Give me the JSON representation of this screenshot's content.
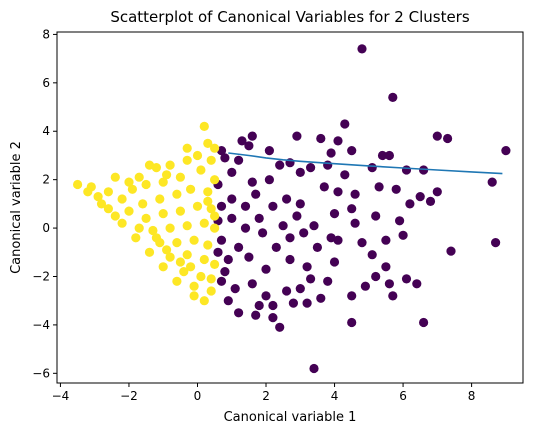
{
  "chart_data": {
    "type": "scatter",
    "title": "Scatterplot of Canonical Variables for 2 Clusters",
    "xlabel": "Canonical variable 1",
    "ylabel": "Canonical variable 2",
    "xlim": [
      -4.1,
      9.5
    ],
    "ylim": [
      -6.4,
      8.1
    ],
    "xticks": [
      -4,
      -2,
      0,
      2,
      4,
      6,
      8
    ],
    "yticks": [
      -6,
      -4,
      -2,
      0,
      2,
      4,
      6,
      8
    ],
    "grid": false,
    "legend": "none",
    "colors": {
      "cluster_0": "#440154",
      "cluster_1": "#fde725",
      "line": "#1f77b4",
      "axes": "#000000"
    },
    "clusters": [
      {
        "id": 0,
        "color": "#440154",
        "points": [
          [
            4.8,
            7.4
          ],
          [
            5.7,
            5.4
          ],
          [
            3.4,
            -5.8
          ],
          [
            8.7,
            -0.6
          ],
          [
            9.0,
            3.2
          ],
          [
            8.6,
            1.9
          ],
          [
            7.4,
            -0.95
          ],
          [
            6.6,
            -3.9
          ],
          [
            7.3,
            3.7
          ],
          [
            7.0,
            3.8
          ],
          [
            6.1,
            2.4
          ],
          [
            6.6,
            2.4
          ],
          [
            4.3,
            4.3
          ],
          [
            4.1,
            3.6
          ],
          [
            4.5,
            3.2
          ],
          [
            3.9,
            3.1
          ],
          [
            2.9,
            3.8
          ],
          [
            3.6,
            3.7
          ],
          [
            5.4,
            3.0
          ],
          [
            5.6,
            3.0
          ],
          [
            6.5,
            1.3
          ],
          [
            6.2,
            1.0
          ],
          [
            6.8,
            1.1
          ],
          [
            7.0,
            1.5
          ],
          [
            5.1,
            2.5
          ],
          [
            6.0,
            -0.3
          ],
          [
            5.9,
            0.3
          ],
          [
            5.5,
            -0.5
          ],
          [
            5.1,
            -1.1
          ],
          [
            5.5,
            -1.6
          ],
          [
            6.1,
            -2.1
          ],
          [
            6.4,
            -2.3
          ],
          [
            5.6,
            -2.3
          ],
          [
            5.7,
            -2.8
          ],
          [
            4.9,
            -2.4
          ],
          [
            5.2,
            -2.0
          ],
          [
            4.0,
            -1.4
          ],
          [
            4.5,
            -2.8
          ],
          [
            3.6,
            -2.9
          ],
          [
            4.5,
            -3.9
          ],
          [
            2.4,
            -4.1
          ],
          [
            2.2,
            -3.7
          ],
          [
            3.2,
            -3.1
          ],
          [
            2.8,
            -3.1
          ],
          [
            1.7,
            -3.6
          ],
          [
            1.2,
            -3.5
          ],
          [
            1.3,
            3.6
          ],
          [
            1.6,
            3.8
          ],
          [
            1.5,
            3.4
          ],
          [
            2.1,
            3.2
          ],
          [
            2.7,
            2.7
          ],
          [
            3.0,
            2.3
          ],
          [
            3.3,
            2.5
          ],
          [
            3.8,
            2.6
          ],
          [
            4.3,
            2.2
          ],
          [
            4.6,
            1.4
          ],
          [
            4.1,
            1.5
          ],
          [
            3.7,
            1.7
          ],
          [
            4.5,
            0.8
          ],
          [
            4.6,
            0.2
          ],
          [
            4.8,
            -0.6
          ],
          [
            3.9,
            -0.4
          ],
          [
            3.5,
            -0.8
          ],
          [
            4.1,
            -0.5
          ],
          [
            3.2,
            -1.6
          ],
          [
            3.3,
            -2.1
          ],
          [
            3.8,
            -2.2
          ],
          [
            2.6,
            -2.6
          ],
          [
            2.0,
            -2.8
          ],
          [
            0.9,
            -3.0
          ],
          [
            0.8,
            2.9
          ],
          [
            0.7,
            3.2
          ],
          [
            1.0,
            2.3
          ],
          [
            1.2,
            2.8
          ],
          [
            1.6,
            1.9
          ],
          [
            2.1,
            2.0
          ],
          [
            2.6,
            1.2
          ],
          [
            2.2,
            0.9
          ],
          [
            2.9,
            0.5
          ],
          [
            3.0,
            1.0
          ],
          [
            2.7,
            -0.4
          ],
          [
            2.3,
            -0.8
          ],
          [
            2.7,
            -1.3
          ],
          [
            2.0,
            -1.7
          ],
          [
            1.6,
            -2.3
          ],
          [
            1.1,
            -2.5
          ],
          [
            0.7,
            -2.2
          ],
          [
            0.6,
            1.8
          ],
          [
            0.7,
            0.9
          ],
          [
            1.0,
            1.2
          ],
          [
            1.4,
            0.9
          ],
          [
            1.8,
            0.4
          ],
          [
            1.4,
            0.0
          ],
          [
            1.9,
            -0.2
          ],
          [
            1.2,
            -0.8
          ],
          [
            0.9,
            -1.3
          ],
          [
            1.5,
            -1.2
          ],
          [
            0.7,
            -0.5
          ],
          [
            0.6,
            0.3
          ],
          [
            0.8,
            -1.8
          ],
          [
            2.4,
            2.6
          ],
          [
            3.4,
            0.1
          ],
          [
            3.1,
            -0.2
          ],
          [
            2.5,
            0.1
          ],
          [
            1.0,
            0.4
          ],
          [
            0.6,
            -1.0
          ],
          [
            1.7,
            1.4
          ],
          [
            4.0,
            0.6
          ],
          [
            5.2,
            0.5
          ],
          [
            5.8,
            1.6
          ],
          [
            3.0,
            -2.5
          ],
          [
            2.2,
            -3.2
          ],
          [
            1.8,
            -3.2
          ],
          [
            5.3,
            1.7
          ]
        ]
      },
      {
        "id": 1,
        "color": "#fde725",
        "points": [
          [
            -3.5,
            1.8
          ],
          [
            0.2,
            4.2
          ],
          [
            -0.3,
            3.3
          ],
          [
            0.3,
            3.5
          ],
          [
            -1.4,
            2.6
          ],
          [
            -1.2,
            2.5
          ],
          [
            -0.8,
            2.6
          ],
          [
            -1.7,
            2.1
          ],
          [
            -2.4,
            2.1
          ],
          [
            -3.1,
            1.7
          ],
          [
            -2.9,
            1.3
          ],
          [
            -2.6,
            0.8
          ],
          [
            -2.2,
            0.2
          ],
          [
            -1.8,
            -0.4
          ],
          [
            -1.4,
            -1.0
          ],
          [
            -1.0,
            -1.6
          ],
          [
            -0.6,
            -2.2
          ],
          [
            -0.1,
            -2.8
          ],
          [
            0.2,
            -3.0
          ],
          [
            0.4,
            -2.6
          ],
          [
            0.4,
            2.8
          ],
          [
            0.1,
            2.4
          ],
          [
            -0.5,
            2.1
          ],
          [
            -1.0,
            1.9
          ],
          [
            -1.9,
            1.6
          ],
          [
            -2.6,
            1.5
          ],
          [
            -2.2,
            1.2
          ],
          [
            -1.6,
            1.0
          ],
          [
            -1.1,
            1.2
          ],
          [
            -0.6,
            1.4
          ],
          [
            -0.2,
            1.6
          ],
          [
            0.3,
            1.5
          ],
          [
            0.5,
            2.0
          ],
          [
            -2.0,
            0.7
          ],
          [
            -1.5,
            0.4
          ],
          [
            -1.0,
            0.6
          ],
          [
            -0.5,
            0.7
          ],
          [
            0.0,
            0.9
          ],
          [
            0.4,
            0.8
          ],
          [
            -1.3,
            -0.1
          ],
          [
            -0.8,
            0.0
          ],
          [
            -0.3,
            0.1
          ],
          [
            0.2,
            0.2
          ],
          [
            0.5,
            0.0
          ],
          [
            -1.1,
            -0.6
          ],
          [
            -0.6,
            -0.6
          ],
          [
            -0.1,
            -0.5
          ],
          [
            0.3,
            -0.7
          ],
          [
            -0.8,
            -1.2
          ],
          [
            -0.3,
            -1.1
          ],
          [
            0.2,
            -1.3
          ],
          [
            0.5,
            -1.5
          ],
          [
            -0.4,
            -1.8
          ],
          [
            0.1,
            -2.0
          ],
          [
            0.4,
            -2.1
          ],
          [
            -0.1,
            -2.4
          ],
          [
            -2.8,
            1.0
          ],
          [
            -2.4,
            0.5
          ],
          [
            -1.7,
            0.0
          ],
          [
            -1.2,
            -0.4
          ],
          [
            -0.9,
            -0.9
          ],
          [
            -0.5,
            -1.4
          ],
          [
            -0.2,
            -1.6
          ],
          [
            -3.2,
            1.5
          ],
          [
            -2.0,
            1.9
          ],
          [
            -1.5,
            1.8
          ],
          [
            -0.9,
            2.2
          ],
          [
            -0.3,
            2.8
          ],
          [
            0.0,
            3.0
          ],
          [
            0.5,
            3.3
          ],
          [
            0.3,
            1.1
          ],
          [
            0.5,
            0.5
          ]
        ]
      }
    ],
    "line": {
      "color": "#1f77b4",
      "x": [
        0.9,
        1.5,
        2.0,
        2.5,
        3.0,
        4.0,
        5.0,
        6.0,
        7.0,
        8.0,
        8.9
      ],
      "y": [
        3.1,
        3.0,
        2.9,
        2.82,
        2.76,
        2.66,
        2.57,
        2.48,
        2.4,
        2.32,
        2.25
      ]
    }
  }
}
